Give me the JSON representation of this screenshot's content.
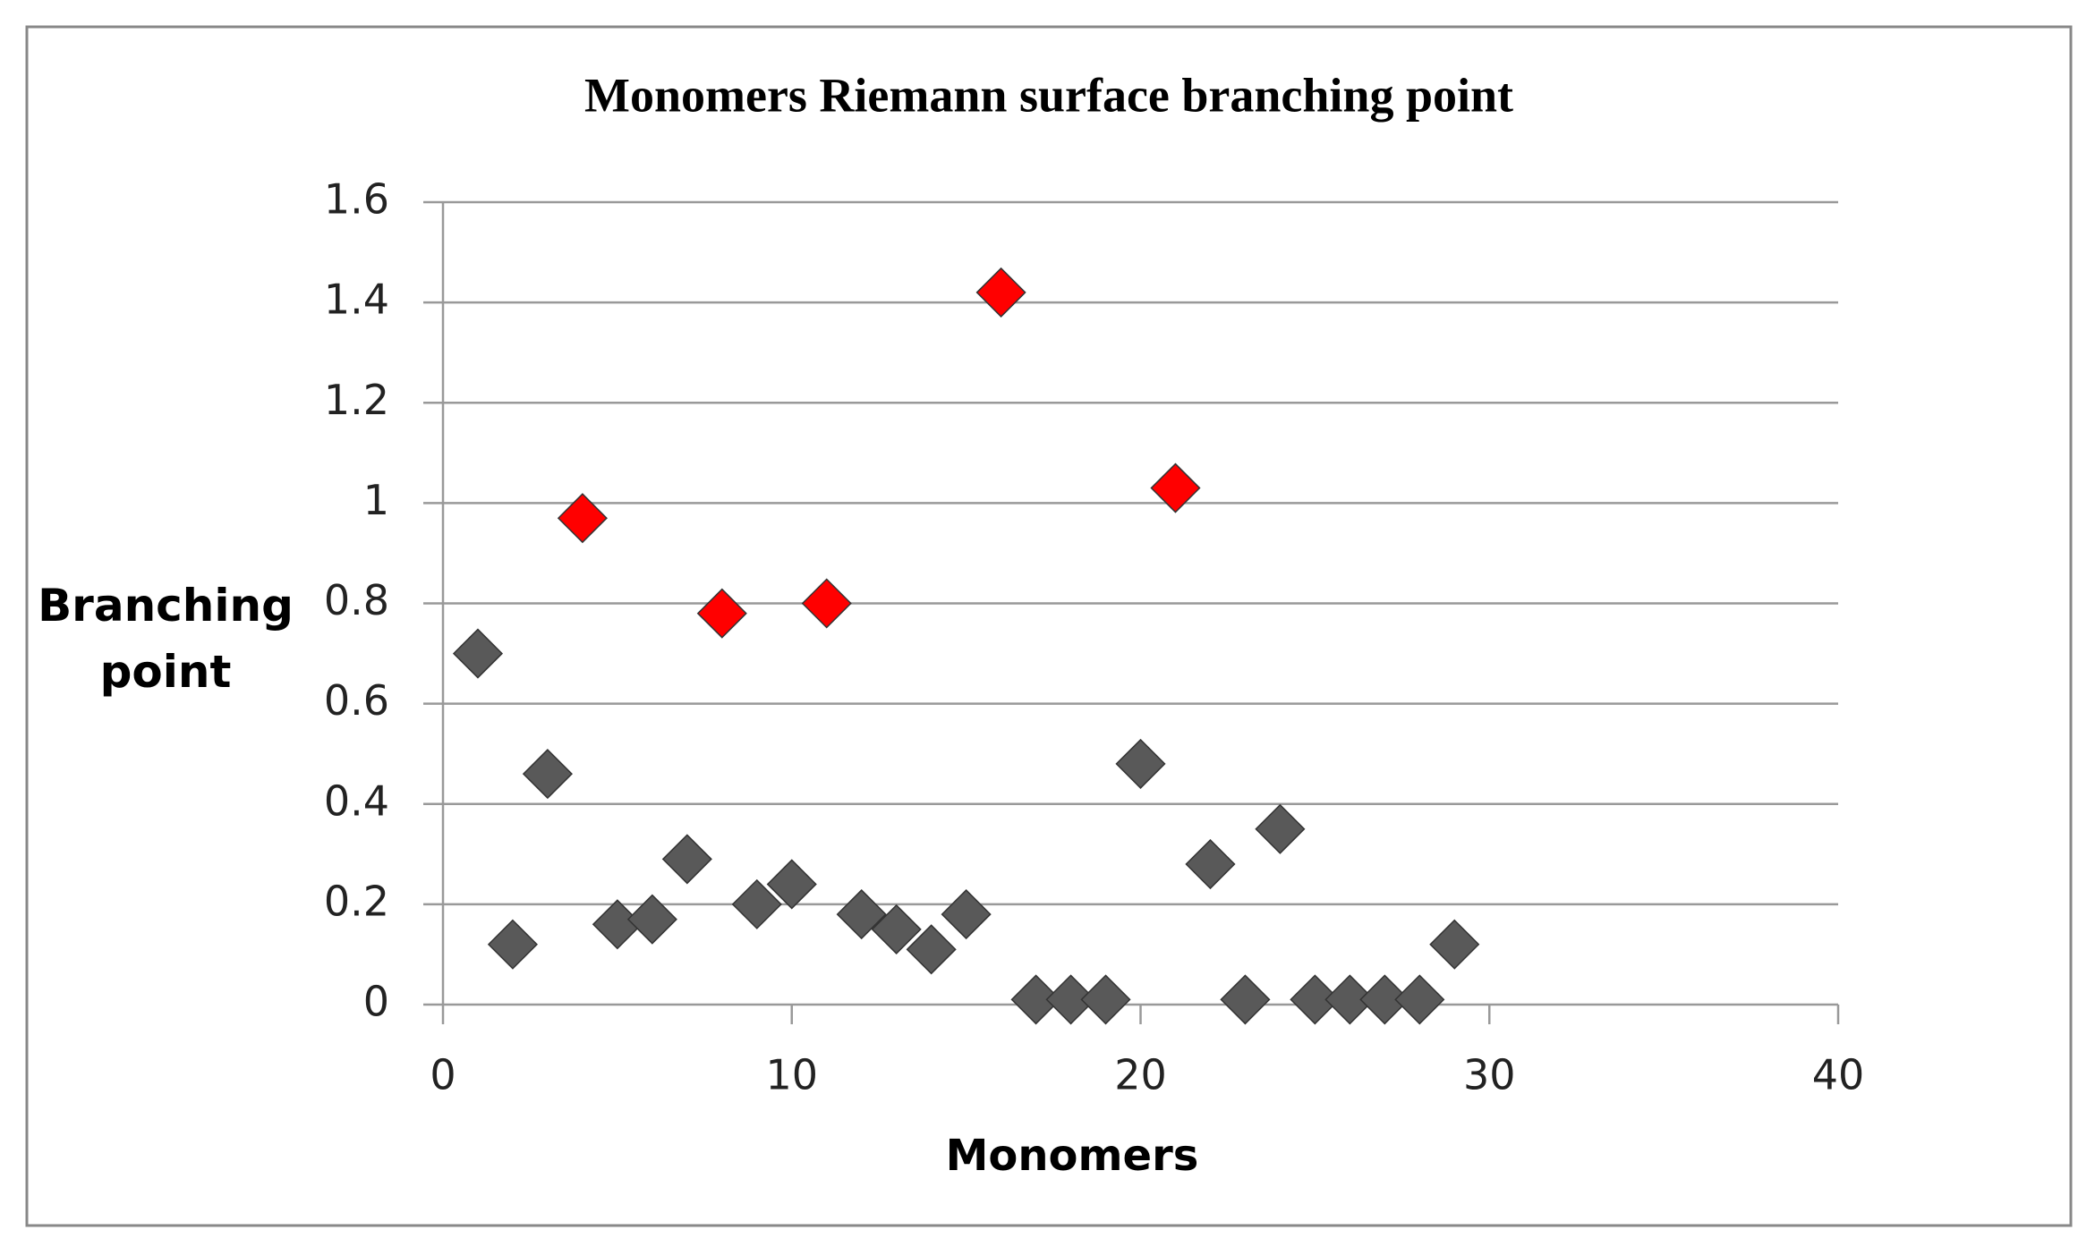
{
  "chart_data": {
    "type": "scatter",
    "title": "Monomers Riemann surface branching point",
    "x_label": "Monomers",
    "y_label": "Branching point",
    "xlim": [
      0,
      40
    ],
    "xticks": [
      0,
      10,
      20,
      30,
      40
    ],
    "ylim": [
      0,
      1.6
    ],
    "yticks": [
      0,
      0.2,
      0.4,
      0.6,
      0.8,
      1,
      1.2,
      1.4,
      1.6
    ],
    "grid": true,
    "series": [
      {
        "color": "#595959",
        "x": [
          1,
          2,
          3,
          5,
          6,
          7,
          9,
          10,
          12,
          13,
          14,
          15,
          17,
          18,
          19,
          20,
          22,
          23,
          24,
          25,
          26,
          27,
          28,
          29
        ],
        "values": [
          0.7,
          0.12,
          0.46,
          0.16,
          0.17,
          0.29,
          0.2,
          0.24,
          0.18,
          0.15,
          0.11,
          0.18,
          0.01,
          0.01,
          0.01,
          0.48,
          0.28,
          0.01,
          0.35,
          0.01,
          0.01,
          0.01,
          0.01,
          0.12
        ]
      },
      {
        "color": "#ff0000",
        "x": [
          4,
          8,
          11,
          16,
          21
        ],
        "values": [
          0.97,
          0.78,
          0.8,
          1.42,
          1.03
        ]
      }
    ]
  }
}
